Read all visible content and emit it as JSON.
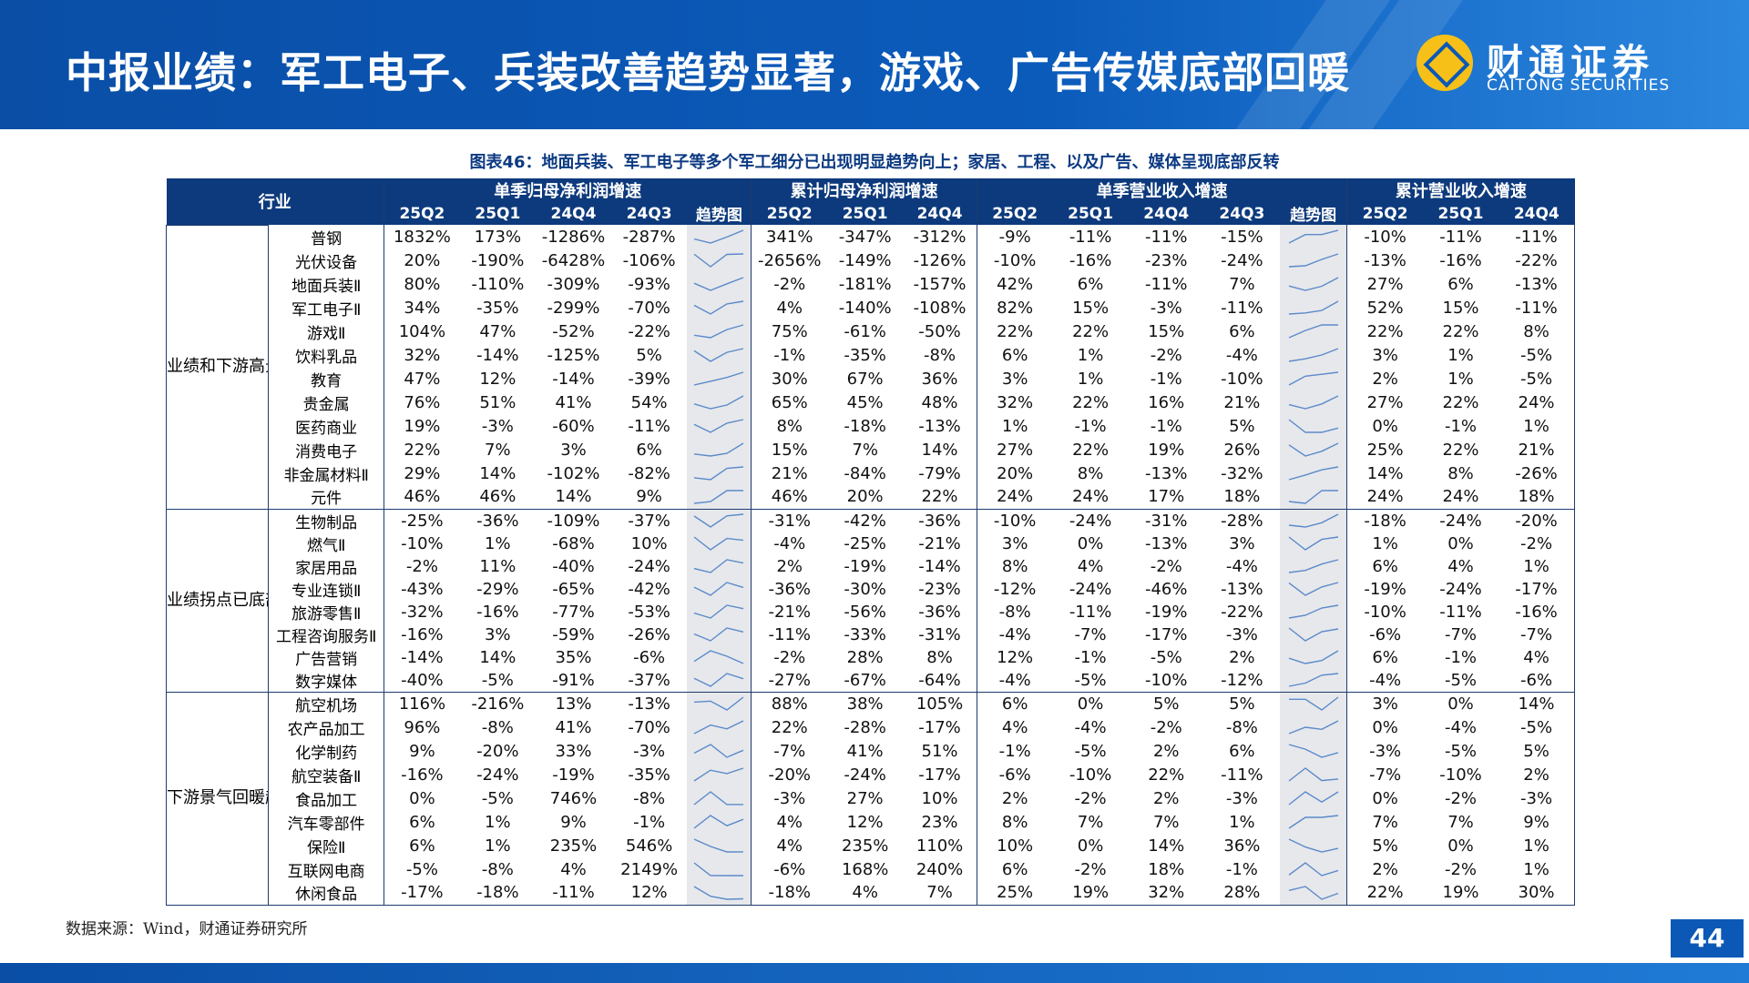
{
  "header": {
    "title": "中报业绩：军工电子、兵装改善趋势显著，游戏、广告传媒底部回暖",
    "logo_cn": "财通证券",
    "logo_en": "CAITONG SECURITIES"
  },
  "chart_title": "图表46：地面兵装、军工电子等多个军工细分已出现明显趋势向上；家居、工程、以及广告、媒体呈现底部反转",
  "table": {
    "industry_header": "行业",
    "groups": [
      {
        "label": "单季归母净利润增速",
        "cols": [
          "25Q2",
          "25Q1",
          "24Q4",
          "24Q3"
        ],
        "trend_label": "趋势图"
      },
      {
        "label": "累计归母净利润增速",
        "cols": [
          "25Q2",
          "25Q1",
          "24Q4"
        ]
      },
      {
        "label": "单季营业收入增速",
        "cols": [
          "25Q2",
          "25Q1",
          "24Q4",
          "24Q3"
        ],
        "trend_label": "趋势图"
      },
      {
        "label": "累计营业收入增速",
        "cols": [
          "25Q2",
          "25Q1",
          "24Q4"
        ]
      }
    ],
    "categories": [
      {
        "label": "业绩和下游高景气确定性强",
        "rows": [
          {
            "name": "普钢",
            "a": [
              "1832%",
              "173%",
              "-1286%",
              "-287%"
            ],
            "b": [
              "341%",
              "-347%",
              "-312%"
            ],
            "c": [
              "-9%",
              "-11%",
              "-11%",
              "-15%"
            ],
            "d": [
              "-10%",
              "-11%",
              "-11%"
            ]
          },
          {
            "name": "光伏设备",
            "a": [
              "20%",
              "-190%",
              "-6428%",
              "-106%"
            ],
            "b": [
              "-2656%",
              "-149%",
              "-126%"
            ],
            "c": [
              "-10%",
              "-16%",
              "-23%",
              "-24%"
            ],
            "d": [
              "-13%",
              "-16%",
              "-22%"
            ]
          },
          {
            "name": "地面兵装Ⅱ",
            "a": [
              "80%",
              "-110%",
              "-309%",
              "-93%"
            ],
            "b": [
              "-2%",
              "-181%",
              "-157%"
            ],
            "c": [
              "42%",
              "6%",
              "-11%",
              "7%"
            ],
            "d": [
              "27%",
              "6%",
              "-13%"
            ]
          },
          {
            "name": "军工电子Ⅱ",
            "a": [
              "34%",
              "-35%",
              "-299%",
              "-70%"
            ],
            "b": [
              "4%",
              "-140%",
              "-108%"
            ],
            "c": [
              "82%",
              "15%",
              "-3%",
              "-11%"
            ],
            "d": [
              "52%",
              "15%",
              "-11%"
            ]
          },
          {
            "name": "游戏Ⅱ",
            "a": [
              "104%",
              "47%",
              "-52%",
              "-22%"
            ],
            "b": [
              "75%",
              "-61%",
              "-50%"
            ],
            "c": [
              "22%",
              "22%",
              "15%",
              "6%"
            ],
            "d": [
              "22%",
              "22%",
              "8%"
            ]
          },
          {
            "name": "饮料乳品",
            "a": [
              "32%",
              "-14%",
              "-125%",
              "5%"
            ],
            "b": [
              "-1%",
              "-35%",
              "-8%"
            ],
            "c": [
              "6%",
              "1%",
              "-2%",
              "-4%"
            ],
            "d": [
              "3%",
              "1%",
              "-5%"
            ]
          },
          {
            "name": "教育",
            "a": [
              "47%",
              "12%",
              "-14%",
              "-39%"
            ],
            "b": [
              "30%",
              "67%",
              "36%"
            ],
            "c": [
              "3%",
              "1%",
              "-1%",
              "-10%"
            ],
            "d": [
              "2%",
              "1%",
              "-5%"
            ]
          },
          {
            "name": "贵金属",
            "a": [
              "76%",
              "51%",
              "41%",
              "54%"
            ],
            "b": [
              "65%",
              "45%",
              "48%"
            ],
            "c": [
              "32%",
              "22%",
              "16%",
              "21%"
            ],
            "d": [
              "27%",
              "22%",
              "24%"
            ]
          },
          {
            "name": "医药商业",
            "a": [
              "19%",
              "-3%",
              "-60%",
              "-11%"
            ],
            "b": [
              "8%",
              "-18%",
              "-13%"
            ],
            "c": [
              "1%",
              "-1%",
              "-1%",
              "5%"
            ],
            "d": [
              "0%",
              "-1%",
              "1%"
            ]
          },
          {
            "name": "消费电子",
            "a": [
              "22%",
              "7%",
              "3%",
              "6%"
            ],
            "b": [
              "15%",
              "7%",
              "14%"
            ],
            "c": [
              "27%",
              "22%",
              "19%",
              "26%"
            ],
            "d": [
              "25%",
              "22%",
              "21%"
            ]
          },
          {
            "name": "非金属材料Ⅱ",
            "a": [
              "29%",
              "14%",
              "-102%",
              "-82%"
            ],
            "b": [
              "21%",
              "-84%",
              "-79%"
            ],
            "c": [
              "20%",
              "8%",
              "-13%",
              "-32%"
            ],
            "d": [
              "14%",
              "8%",
              "-26%"
            ]
          },
          {
            "name": "元件",
            "a": [
              "46%",
              "46%",
              "14%",
              "9%"
            ],
            "b": [
              "46%",
              "20%",
              "22%"
            ],
            "c": [
              "24%",
              "24%",
              "17%",
              "18%"
            ],
            "d": [
              "24%",
              "24%",
              "18%"
            ]
          }
        ]
      },
      {
        "label": "业绩拐点已底部向上",
        "rows": [
          {
            "name": "生物制品",
            "a": [
              "-25%",
              "-36%",
              "-109%",
              "-37%"
            ],
            "b": [
              "-31%",
              "-42%",
              "-36%"
            ],
            "c": [
              "-10%",
              "-24%",
              "-31%",
              "-28%"
            ],
            "d": [
              "-18%",
              "-24%",
              "-20%"
            ]
          },
          {
            "name": "燃气Ⅱ",
            "a": [
              "-10%",
              "1%",
              "-68%",
              "10%"
            ],
            "b": [
              "-4%",
              "-25%",
              "-21%"
            ],
            "c": [
              "3%",
              "0%",
              "-13%",
              "3%"
            ],
            "d": [
              "1%",
              "0%",
              "-2%"
            ]
          },
          {
            "name": "家居用品",
            "a": [
              "-2%",
              "11%",
              "-40%",
              "-24%"
            ],
            "b": [
              "2%",
              "-19%",
              "-14%"
            ],
            "c": [
              "8%",
              "4%",
              "-2%",
              "-4%"
            ],
            "d": [
              "6%",
              "4%",
              "1%"
            ]
          },
          {
            "name": "专业连锁Ⅱ",
            "a": [
              "-43%",
              "-29%",
              "-65%",
              "-42%"
            ],
            "b": [
              "-36%",
              "-30%",
              "-23%"
            ],
            "c": [
              "-12%",
              "-24%",
              "-46%",
              "-13%"
            ],
            "d": [
              "-19%",
              "-24%",
              "-17%"
            ]
          },
          {
            "name": "旅游零售Ⅱ",
            "a": [
              "-32%",
              "-16%",
              "-77%",
              "-53%"
            ],
            "b": [
              "-21%",
              "-56%",
              "-36%"
            ],
            "c": [
              "-8%",
              "-11%",
              "-19%",
              "-22%"
            ],
            "d": [
              "-10%",
              "-11%",
              "-16%"
            ]
          },
          {
            "name": "工程咨询服务Ⅱ",
            "a": [
              "-16%",
              "3%",
              "-59%",
              "-26%"
            ],
            "b": [
              "-11%",
              "-33%",
              "-31%"
            ],
            "c": [
              "-4%",
              "-7%",
              "-17%",
              "-3%"
            ],
            "d": [
              "-6%",
              "-7%",
              "-7%"
            ]
          },
          {
            "name": "广告营销",
            "a": [
              "-14%",
              "14%",
              "35%",
              "-6%"
            ],
            "b": [
              "-2%",
              "28%",
              "8%"
            ],
            "c": [
              "12%",
              "-1%",
              "-5%",
              "2%"
            ],
            "d": [
              "6%",
              "-1%",
              "4%"
            ]
          },
          {
            "name": "数字媒体",
            "a": [
              "-40%",
              "-5%",
              "-91%",
              "-37%"
            ],
            "b": [
              "-27%",
              "-67%",
              "-64%"
            ],
            "c": [
              "-4%",
              "-5%",
              "-10%",
              "-12%"
            ],
            "d": [
              "-4%",
              "-5%",
              "-6%"
            ]
          }
        ]
      },
      {
        "label": "下游景气回暖趋势明显",
        "rows": [
          {
            "name": "航空机场",
            "a": [
              "116%",
              "-216%",
              "13%",
              "-13%"
            ],
            "b": [
              "88%",
              "38%",
              "105%"
            ],
            "c": [
              "6%",
              "0%",
              "5%",
              "5%"
            ],
            "d": [
              "3%",
              "0%",
              "14%"
            ]
          },
          {
            "name": "农产品加工",
            "a": [
              "96%",
              "-8%",
              "41%",
              "-70%"
            ],
            "b": [
              "22%",
              "-28%",
              "-17%"
            ],
            "c": [
              "4%",
              "-4%",
              "-2%",
              "-8%"
            ],
            "d": [
              "0%",
              "-4%",
              "-5%"
            ]
          },
          {
            "name": "化学制药",
            "a": [
              "9%",
              "-20%",
              "33%",
              "-3%"
            ],
            "b": [
              "-7%",
              "41%",
              "51%"
            ],
            "c": [
              "-1%",
              "-5%",
              "2%",
              "6%"
            ],
            "d": [
              "-3%",
              "-5%",
              "5%"
            ]
          },
          {
            "name": "航空装备Ⅱ",
            "a": [
              "-16%",
              "-24%",
              "-19%",
              "-35%"
            ],
            "b": [
              "-20%",
              "-24%",
              "-17%"
            ],
            "c": [
              "-6%",
              "-10%",
              "22%",
              "-11%"
            ],
            "d": [
              "-7%",
              "-10%",
              "2%"
            ]
          },
          {
            "name": "食品加工",
            "a": [
              "0%",
              "-5%",
              "746%",
              "-8%"
            ],
            "b": [
              "-3%",
              "27%",
              "10%"
            ],
            "c": [
              "2%",
              "-2%",
              "2%",
              "-3%"
            ],
            "d": [
              "0%",
              "-2%",
              "-3%"
            ]
          },
          {
            "name": "汽车零部件",
            "a": [
              "6%",
              "1%",
              "9%",
              "-1%"
            ],
            "b": [
              "4%",
              "12%",
              "23%"
            ],
            "c": [
              "8%",
              "7%",
              "7%",
              "1%"
            ],
            "d": [
              "7%",
              "7%",
              "9%"
            ]
          },
          {
            "name": "保险Ⅱ",
            "a": [
              "6%",
              "1%",
              "235%",
              "546%"
            ],
            "b": [
              "4%",
              "235%",
              "110%"
            ],
            "c": [
              "10%",
              "0%",
              "14%",
              "36%"
            ],
            "d": [
              "5%",
              "0%",
              "1%"
            ]
          },
          {
            "name": "互联网电商",
            "a": [
              "-5%",
              "-8%",
              "4%",
              "2149%"
            ],
            "b": [
              "-6%",
              "168%",
              "240%"
            ],
            "c": [
              "6%",
              "-2%",
              "18%",
              "-1%"
            ],
            "d": [
              "2%",
              "-2%",
              "1%"
            ]
          },
          {
            "name": "休闲食品",
            "a": [
              "-17%",
              "-18%",
              "-11%",
              "12%"
            ],
            "b": [
              "-18%",
              "4%",
              "7%"
            ],
            "c": [
              "25%",
              "19%",
              "32%",
              "28%"
            ],
            "d": [
              "22%",
              "19%",
              "30%"
            ]
          }
        ]
      }
    ]
  },
  "source": "数据来源：Wind，财通证券研究所",
  "page_number": "44",
  "colors": {
    "header_blue": "#0b58b6",
    "table_header": "#0d3a7c",
    "sparkline": "#5b8ac9",
    "trend_bg": "#e7e8ec"
  }
}
